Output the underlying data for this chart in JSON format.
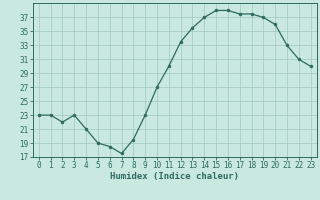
{
  "x": [
    0,
    1,
    2,
    3,
    4,
    5,
    6,
    7,
    8,
    9,
    10,
    11,
    12,
    13,
    14,
    15,
    16,
    17,
    18,
    19,
    20,
    21,
    22,
    23
  ],
  "y": [
    23,
    23,
    22,
    23,
    21,
    19,
    18.5,
    17.5,
    19.5,
    23,
    27,
    30,
    33.5,
    35.5,
    37,
    38,
    38,
    37.5,
    37.5,
    37,
    36,
    33,
    31,
    30
  ],
  "xlabel": "Humidex (Indice chaleur)",
  "ylim": [
    17,
    39
  ],
  "xlim": [
    -0.5,
    23.5
  ],
  "yticks": [
    17,
    19,
    21,
    23,
    25,
    27,
    29,
    31,
    33,
    35,
    37
  ],
  "xticks": [
    0,
    1,
    2,
    3,
    4,
    5,
    6,
    7,
    8,
    9,
    10,
    11,
    12,
    13,
    14,
    15,
    16,
    17,
    18,
    19,
    20,
    21,
    22,
    23
  ],
  "line_color": "#2e6b5e",
  "bg_color": "#c8e8e0",
  "grid_color": "#a0c8be"
}
